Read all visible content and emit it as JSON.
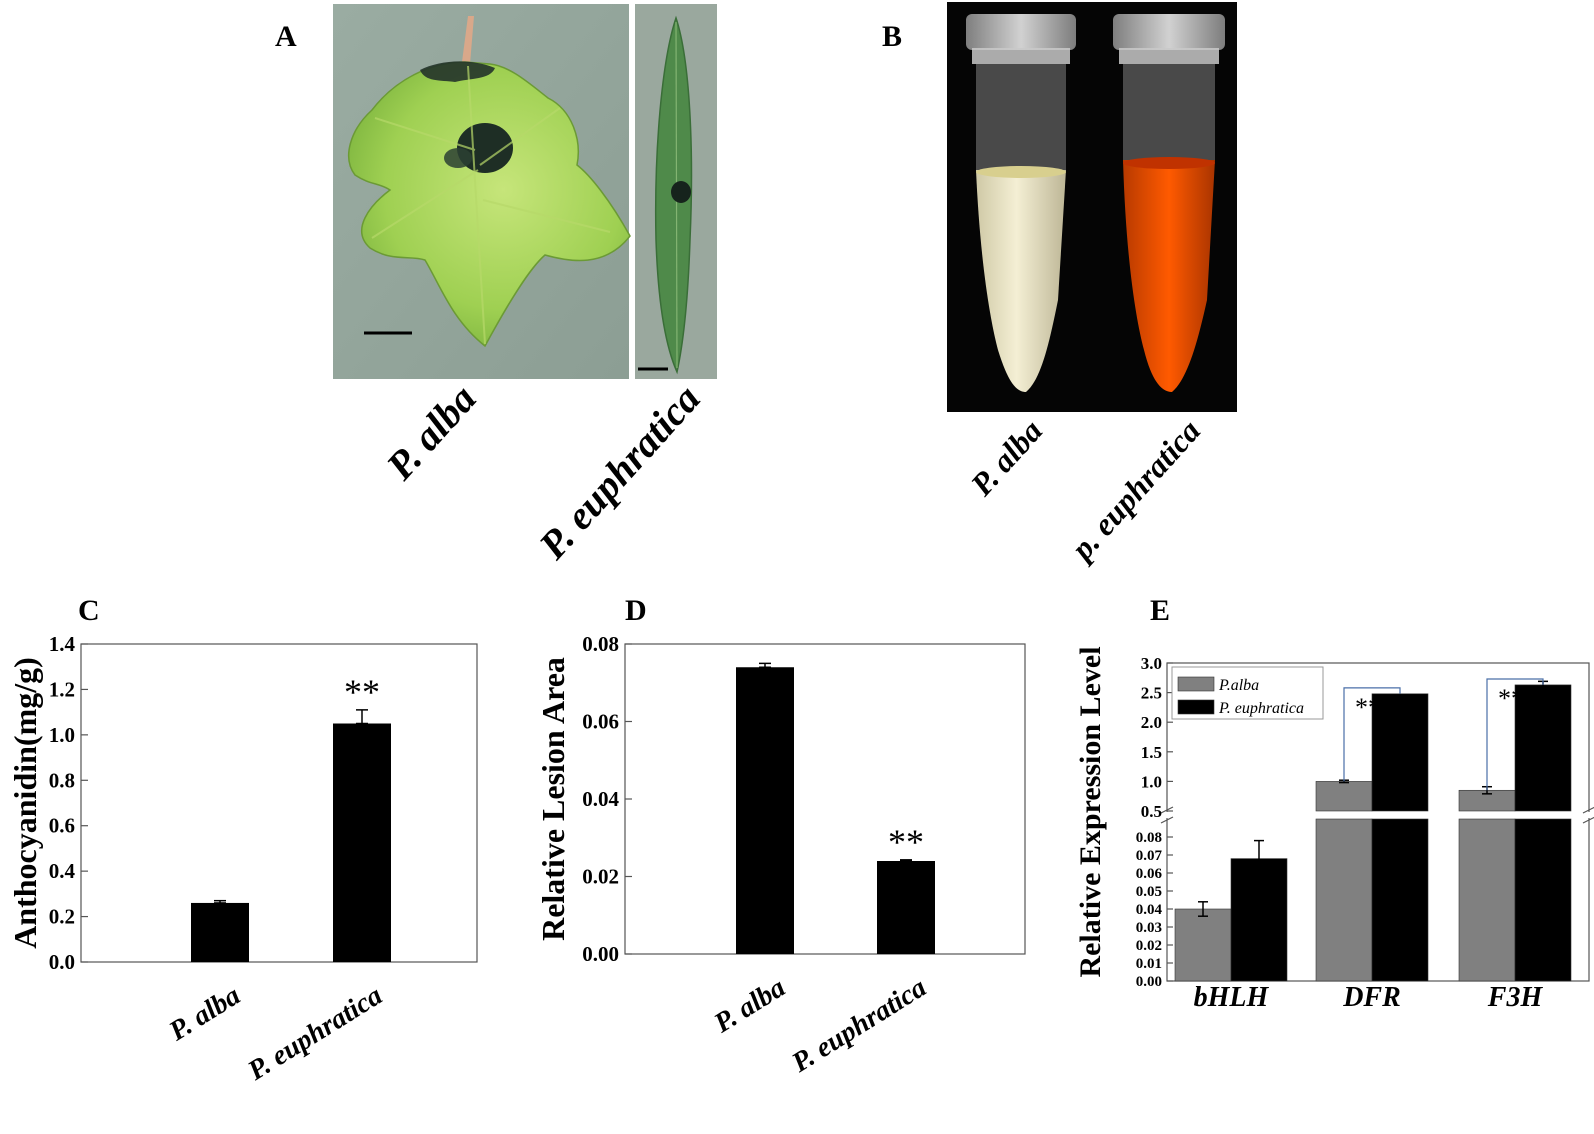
{
  "panel_a": {
    "letter": "A",
    "labels": [
      "P. alba",
      "P. euphratica"
    ],
    "colors": {
      "background": "#93a59b",
      "leaf_light": "#b3d85c",
      "leaf_mid": "#8cc44a",
      "leaf_narrow": "#4f8a4a",
      "lesion": "#1d2c24"
    }
  },
  "panel_b": {
    "letter": "B",
    "labels": [
      "P. alba",
      "p. euphratica"
    ],
    "colors": {
      "background": "#050505",
      "tube_left": "#eee9c8",
      "tube_right": "#ee5000"
    }
  },
  "chart_data": [
    {
      "type": "bar",
      "panel": "C",
      "categories": [
        "P. alba",
        "P. euphratica"
      ],
      "values": [
        0.26,
        1.05
      ],
      "errors": [
        0.01,
        0.06
      ],
      "significance": [
        "",
        "**"
      ],
      "ylabel": "Anthocyanidin(mg/g)",
      "ylim": [
        0,
        1.4
      ],
      "yticks": [
        "0.0",
        "0.2",
        "0.4",
        "0.6",
        "0.8",
        "1.0",
        "1.2",
        "1.4"
      ],
      "grid": false,
      "bar_color": "#000000"
    },
    {
      "type": "bar",
      "panel": "D",
      "categories": [
        "P. alba",
        "P. euphratica"
      ],
      "values": [
        0.074,
        0.024
      ],
      "errors": [
        0.001,
        0.0003
      ],
      "significance": [
        "",
        "**"
      ],
      "ylabel": "Relative Lesion Area",
      "ylim": [
        0,
        0.08
      ],
      "yticks": [
        "0.00",
        "0.02",
        "0.04",
        "0.06",
        "0.08"
      ],
      "grid": false,
      "bar_color": "#000000"
    },
    {
      "type": "bar",
      "panel": "E",
      "categories": [
        "bHLH",
        "DFR",
        "F3H"
      ],
      "series": [
        {
          "name": "P.alba",
          "values": [
            0.04,
            1.0,
            0.85
          ],
          "errors": [
            0.004,
            0.02,
            0.06
          ],
          "color": "#808080"
        },
        {
          "name": "P. euphratica",
          "values": [
            0.068,
            2.48,
            2.63
          ],
          "errors": [
            0.01,
            0.0,
            0.06
          ],
          "color": "#000000"
        }
      ],
      "significance": [
        "",
        "**",
        "**"
      ],
      "ylabel": "Relative Expression Level",
      "axis_break": true,
      "ylim_lower": [
        0,
        0.09
      ],
      "ylim_upper": [
        0.5,
        3.0
      ],
      "yticks_lower": [
        "0.00",
        "0.01",
        "0.02",
        "0.03",
        "0.04",
        "0.05",
        "0.06",
        "0.07",
        "0.08"
      ],
      "yticks_upper": [
        "0.5",
        "1.0",
        "1.5",
        "2.0",
        "2.5",
        "3.0"
      ],
      "legend": "top-left",
      "grid": false
    }
  ]
}
